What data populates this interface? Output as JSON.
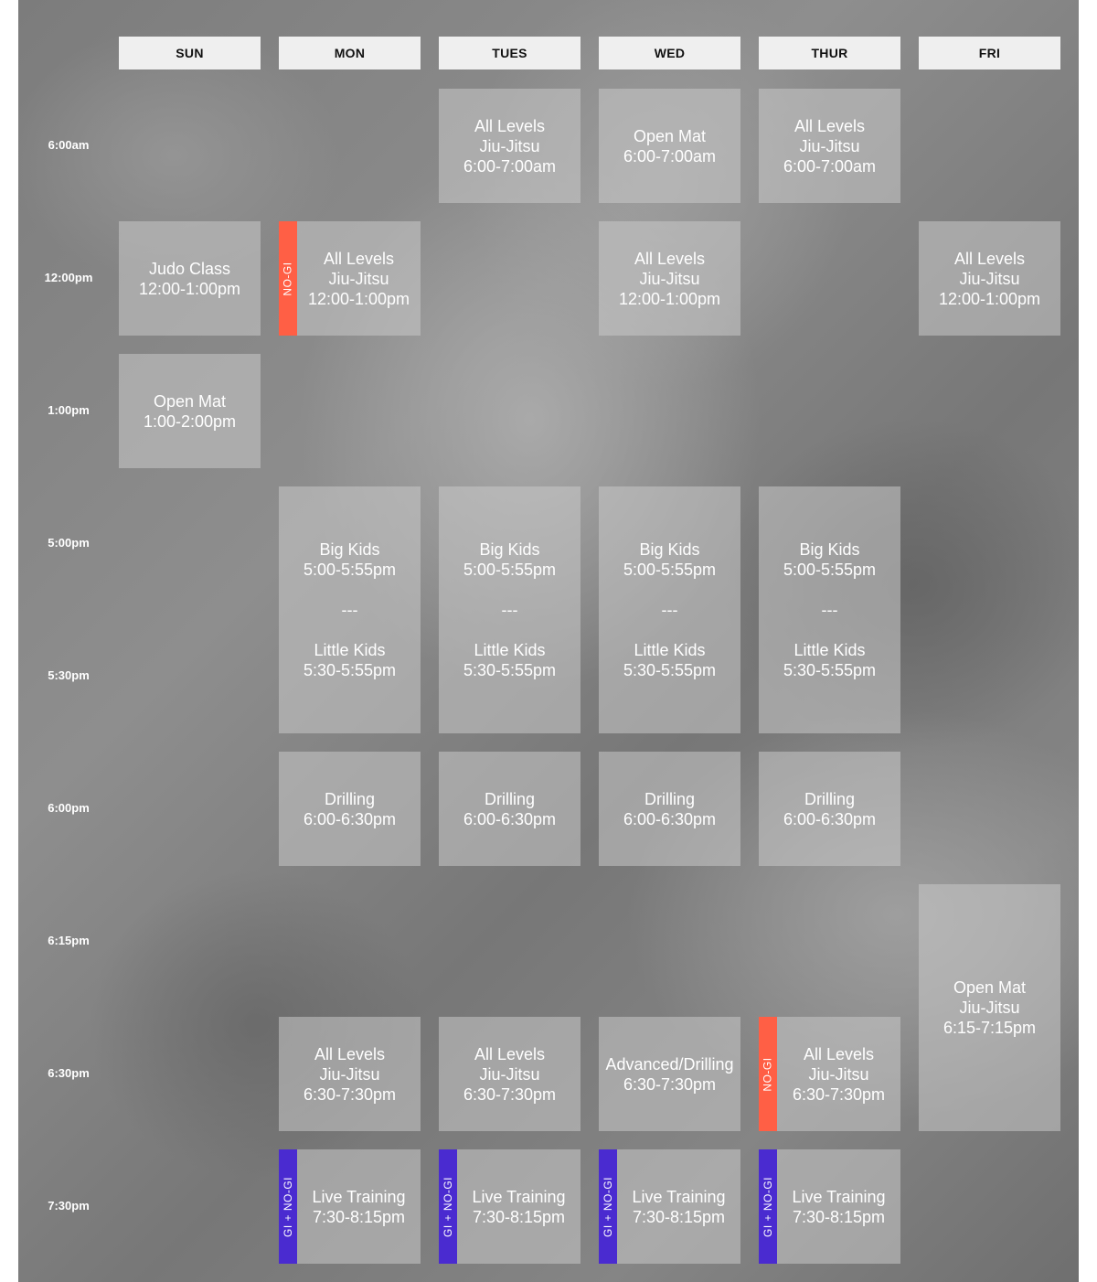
{
  "days": [
    "SUN",
    "MON",
    "TUES",
    "WED",
    "THUR",
    "FRI"
  ],
  "times": [
    "6:00am",
    "12:00pm",
    "1:00pm",
    "5:00pm",
    "5:30pm",
    "6:00pm",
    "6:15pm",
    "6:30pm",
    "7:30pm"
  ],
  "tags": {
    "nogi": "NO-GI",
    "ginogi": "GI + NO-GI"
  },
  "tag_colors": {
    "nogi": "#ff5f45",
    "ginogi": "#4a2bd0"
  },
  "schedule": {
    "tue_0600": [
      "All Levels",
      "Jiu-Jitsu",
      "6:00-7:00am"
    ],
    "wed_0600": [
      "Open Mat",
      "6:00-7:00am"
    ],
    "thu_0600": [
      "All Levels",
      "Jiu-Jitsu",
      "6:00-7:00am"
    ],
    "sun_1200": [
      "Judo Class",
      "12:00-1:00pm"
    ],
    "mon_1200": [
      "All Levels",
      "Jiu-Jitsu",
      "12:00-1:00pm"
    ],
    "wed_1200": [
      "All Levels",
      "Jiu-Jitsu",
      "12:00-1:00pm"
    ],
    "fri_1200": [
      "All Levels",
      "Jiu-Jitsu",
      "12:00-1:00pm"
    ],
    "sun_1300": [
      "Open Mat",
      "1:00-2:00pm"
    ],
    "kids": [
      "Big Kids",
      "5:00-5:55pm",
      "---",
      "Little Kids",
      "5:30-5:55pm"
    ],
    "drilling": [
      "Drilling",
      "6:00-6:30pm"
    ],
    "fri_1815": [
      "Open Mat",
      "Jiu-Jitsu",
      "6:15-7:15pm"
    ],
    "all_levels_1830": [
      "All Levels",
      "Jiu-Jitsu",
      "6:30-7:30pm"
    ],
    "wed_1830": [
      "Advanced/Drilling",
      "6:30-7:30pm"
    ],
    "live_training": [
      "Live Training",
      "7:30-8:15pm"
    ]
  }
}
